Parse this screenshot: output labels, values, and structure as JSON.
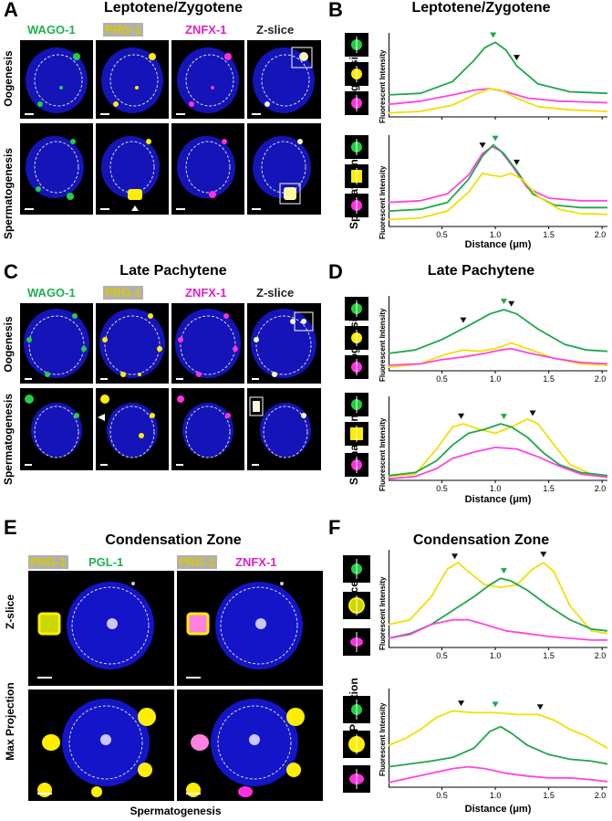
{
  "panels": {
    "A": {
      "letter": "A",
      "title": "Leptotene/Zygotene",
      "channels": [
        "WAGO-1",
        "PRG-1",
        "ZNFX-1",
        "Z-slice"
      ],
      "rows": [
        "Oogenesis",
        "Spermatogenesis"
      ]
    },
    "B": {
      "letter": "B",
      "title": "Leptotene/Zygotene"
    },
    "C": {
      "letter": "C",
      "title": "Late Pachytene",
      "channels": [
        "WAGO-1",
        "PRG-1",
        "ZNFX-1",
        "Z-slice"
      ],
      "rows": [
        "Oogenesis",
        "Spermatogenesis"
      ]
    },
    "D": {
      "letter": "D",
      "title": "Late Pachytene"
    },
    "E": {
      "letter": "E",
      "title": "Condensation Zone",
      "left_channels": [
        "PRG-1",
        "PGL-1"
      ],
      "right_channels": [
        "PRG-1",
        "ZNFX-1"
      ],
      "rows": [
        "Z-slice",
        "Max Projection"
      ],
      "footer": "Spermatogenesis"
    },
    "F": {
      "letter": "F",
      "title": "Condensation Zone"
    }
  },
  "chart_common": {
    "ylabel": "Fluorescent Intensity",
    "xlabel": "Distance (μm)",
    "xticks": [
      "0.5",
      "1.0",
      "1.5",
      "2.0"
    ],
    "xlim": [
      0,
      2.05
    ]
  },
  "colors": {
    "green": "#1fa64a",
    "yellow": "#f0e000",
    "magenta": "#ff44e0",
    "nucleus": "#1a1acc",
    "wago": "#20d040",
    "prg": "#ffee00",
    "znfx": "#ff30e0"
  },
  "chart_data": [
    {
      "id": "B-oogenesis",
      "type": "line",
      "row": "Oogenesis",
      "xlim": [
        0,
        2.05
      ],
      "ylim": [
        0,
        1
      ],
      "series": [
        {
          "color": "green",
          "x": [
            0,
            0.3,
            0.6,
            0.8,
            0.9,
            1.0,
            1.1,
            1.2,
            1.4,
            1.7,
            2.05
          ],
          "y": [
            0.28,
            0.3,
            0.45,
            0.72,
            0.88,
            0.95,
            0.85,
            0.65,
            0.42,
            0.32,
            0.3
          ]
        },
        {
          "color": "magenta",
          "x": [
            0,
            0.3,
            0.6,
            0.8,
            0.95,
            1.1,
            1.3,
            1.6,
            2.05
          ],
          "y": [
            0.16,
            0.2,
            0.28,
            0.34,
            0.36,
            0.32,
            0.24,
            0.2,
            0.18
          ]
        },
        {
          "color": "yellow",
          "x": [
            0,
            0.3,
            0.6,
            0.8,
            0.95,
            1.05,
            1.2,
            1.4,
            1.7,
            2.05
          ],
          "y": [
            0.05,
            0.07,
            0.15,
            0.28,
            0.36,
            0.34,
            0.24,
            0.13,
            0.09,
            0.07
          ]
        }
      ],
      "markers": [
        {
          "x": 0.98,
          "color": "green"
        },
        {
          "x": 1.2,
          "color": "black"
        }
      ]
    },
    {
      "id": "B-spermatogenesis",
      "type": "line",
      "row": "Spermatogenesis",
      "xlim": [
        0,
        2.05
      ],
      "ylim": [
        0,
        1
      ],
      "series": [
        {
          "color": "magenta",
          "x": [
            0,
            0.3,
            0.55,
            0.75,
            0.88,
            0.97,
            1.05,
            1.15,
            1.3,
            1.5,
            1.8,
            2.05
          ],
          "y": [
            0.28,
            0.3,
            0.38,
            0.6,
            0.85,
            0.93,
            0.88,
            0.72,
            0.45,
            0.33,
            0.3,
            0.3
          ]
        },
        {
          "color": "green",
          "x": [
            0,
            0.3,
            0.55,
            0.75,
            0.88,
            0.98,
            1.08,
            1.2,
            1.35,
            1.55,
            1.8,
            2.05
          ],
          "y": [
            0.18,
            0.2,
            0.28,
            0.55,
            0.82,
            0.95,
            0.85,
            0.65,
            0.38,
            0.25,
            0.22,
            0.22
          ]
        },
        {
          "color": "yellow",
          "x": [
            0,
            0.3,
            0.55,
            0.75,
            0.88,
            0.95,
            1.05,
            1.15,
            1.25,
            1.4,
            1.6,
            1.8,
            2.05
          ],
          "y": [
            0.08,
            0.1,
            0.18,
            0.4,
            0.62,
            0.6,
            0.58,
            0.62,
            0.55,
            0.35,
            0.2,
            0.15,
            0.14
          ]
        }
      ],
      "markers": [
        {
          "x": 0.88,
          "color": "black"
        },
        {
          "x": 1.0,
          "color": "green"
        },
        {
          "x": 1.2,
          "color": "black"
        }
      ]
    },
    {
      "id": "D-oogenesis",
      "type": "line",
      "row": "Oogenesis",
      "xlim": [
        0,
        2.05
      ],
      "ylim": [
        0,
        1
      ],
      "series": [
        {
          "color": "green",
          "x": [
            0,
            0.25,
            0.5,
            0.75,
            0.95,
            1.08,
            1.2,
            1.4,
            1.65,
            1.85,
            2.05
          ],
          "y": [
            0.25,
            0.3,
            0.45,
            0.65,
            0.82,
            0.88,
            0.82,
            0.6,
            0.38,
            0.3,
            0.28
          ]
        },
        {
          "color": "yellow",
          "x": [
            0,
            0.3,
            0.5,
            0.7,
            0.85,
            1.0,
            1.15,
            1.3,
            1.55,
            1.8,
            2.05
          ],
          "y": [
            0.05,
            0.1,
            0.22,
            0.3,
            0.28,
            0.32,
            0.4,
            0.32,
            0.18,
            0.1,
            0.08
          ]
        },
        {
          "color": "magenta",
          "x": [
            0,
            0.3,
            0.5,
            0.7,
            0.9,
            1.05,
            1.15,
            1.3,
            1.55,
            1.8,
            2.05
          ],
          "y": [
            0.08,
            0.1,
            0.16,
            0.2,
            0.25,
            0.3,
            0.32,
            0.26,
            0.18,
            0.12,
            0.1
          ]
        }
      ],
      "markers": [
        {
          "x": 0.7,
          "color": "black"
        },
        {
          "x": 1.08,
          "color": "green"
        },
        {
          "x": 1.15,
          "color": "black"
        }
      ]
    },
    {
      "id": "D-spermatogenesis",
      "type": "line",
      "row": "Spermatogenesis",
      "xlim": [
        0,
        2.05
      ],
      "ylim": [
        0,
        1
      ],
      "series": [
        {
          "color": "yellow",
          "x": [
            0,
            0.25,
            0.45,
            0.6,
            0.7,
            0.85,
            1.0,
            1.15,
            1.3,
            1.4,
            1.55,
            1.7,
            1.9,
            2.05
          ],
          "y": [
            0.05,
            0.08,
            0.4,
            0.68,
            0.72,
            0.65,
            0.6,
            0.68,
            0.78,
            0.72,
            0.45,
            0.2,
            0.08,
            0.05
          ]
        },
        {
          "color": "green",
          "x": [
            0,
            0.25,
            0.45,
            0.6,
            0.75,
            0.9,
            1.05,
            1.15,
            1.3,
            1.45,
            1.6,
            1.8,
            2.05
          ],
          "y": [
            0.06,
            0.1,
            0.25,
            0.45,
            0.6,
            0.65,
            0.72,
            0.68,
            0.55,
            0.35,
            0.2,
            0.1,
            0.06
          ]
        },
        {
          "color": "magenta",
          "x": [
            0,
            0.25,
            0.45,
            0.6,
            0.8,
            1.0,
            1.2,
            1.4,
            1.6,
            1.8,
            2.05
          ],
          "y": [
            0.02,
            0.05,
            0.15,
            0.28,
            0.36,
            0.42,
            0.4,
            0.3,
            0.18,
            0.08,
            0.04
          ]
        }
      ],
      "markers": [
        {
          "x": 0.68,
          "color": "black"
        },
        {
          "x": 1.08,
          "color": "green"
        },
        {
          "x": 1.35,
          "color": "black"
        }
      ]
    },
    {
      "id": "F-zslice",
      "type": "line",
      "row": "Z-slice",
      "xlim": [
        0,
        2.05
      ],
      "ylim": [
        0,
        1
      ],
      "series": [
        {
          "color": "yellow",
          "x": [
            0,
            0.2,
            0.4,
            0.55,
            0.65,
            0.75,
            0.9,
            1.05,
            1.2,
            1.35,
            1.45,
            1.55,
            1.7,
            1.9,
            2.05
          ],
          "y": [
            0.25,
            0.3,
            0.55,
            0.85,
            0.92,
            0.82,
            0.68,
            0.65,
            0.68,
            0.85,
            0.92,
            0.82,
            0.45,
            0.18,
            0.15
          ]
        },
        {
          "color": "green",
          "x": [
            0,
            0.2,
            0.4,
            0.6,
            0.8,
            0.95,
            1.05,
            1.15,
            1.3,
            1.5,
            1.7,
            1.9,
            2.05
          ],
          "y": [
            0.1,
            0.15,
            0.25,
            0.4,
            0.55,
            0.68,
            0.75,
            0.72,
            0.62,
            0.45,
            0.3,
            0.2,
            0.18
          ]
        },
        {
          "color": "magenta",
          "x": [
            0,
            0.2,
            0.4,
            0.6,
            0.75,
            0.9,
            1.1,
            1.3,
            1.5,
            1.7,
            1.9,
            2.05
          ],
          "y": [
            0.1,
            0.14,
            0.25,
            0.3,
            0.3,
            0.25,
            0.18,
            0.15,
            0.12,
            0.1,
            0.08,
            0.08
          ]
        }
      ],
      "markers": [
        {
          "x": 0.62,
          "color": "black"
        },
        {
          "x": 1.08,
          "color": "green"
        },
        {
          "x": 1.45,
          "color": "black"
        }
      ]
    },
    {
      "id": "F-maxprojection",
      "type": "line",
      "row": "Max Projection",
      "xlim": [
        0,
        2.05
      ],
      "ylim": [
        0,
        1
      ],
      "series": [
        {
          "color": "yellow",
          "x": [
            0,
            0.15,
            0.3,
            0.45,
            0.6,
            0.8,
            1.0,
            1.2,
            1.4,
            1.55,
            1.7,
            1.85,
            2.05
          ],
          "y": [
            0.45,
            0.52,
            0.62,
            0.75,
            0.82,
            0.8,
            0.8,
            0.78,
            0.78,
            0.72,
            0.62,
            0.55,
            0.42
          ]
        },
        {
          "color": "green",
          "x": [
            0,
            0.2,
            0.4,
            0.6,
            0.8,
            0.95,
            1.05,
            1.15,
            1.3,
            1.5,
            1.7,
            1.9,
            2.05
          ],
          "y": [
            0.22,
            0.25,
            0.28,
            0.32,
            0.42,
            0.6,
            0.65,
            0.58,
            0.45,
            0.35,
            0.3,
            0.28,
            0.25
          ]
        },
        {
          "color": "magenta",
          "x": [
            0,
            0.2,
            0.4,
            0.6,
            0.75,
            0.9,
            1.1,
            1.3,
            1.5,
            1.7,
            1.9,
            2.05
          ],
          "y": [
            0.05,
            0.1,
            0.15,
            0.2,
            0.22,
            0.2,
            0.15,
            0.12,
            0.1,
            0.1,
            0.08,
            0.06
          ]
        }
      ],
      "markers": [
        {
          "x": 0.68,
          "color": "black"
        },
        {
          "x": 1.0,
          "color": "green"
        },
        {
          "x": 1.42,
          "color": "black"
        }
      ]
    }
  ]
}
